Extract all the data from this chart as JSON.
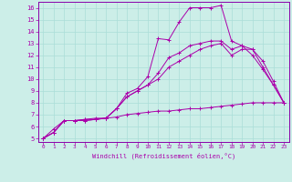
{
  "bg_color": "#cceee8",
  "grid_color": "#aaddd8",
  "line_color": "#aa00aa",
  "spine_color": "#8800aa",
  "xlabel": "Windchill (Refroidissement éolien,°C)",
  "xlim": [
    -0.5,
    23.5
  ],
  "ylim": [
    4.7,
    16.5
  ],
  "xticks": [
    0,
    1,
    2,
    3,
    4,
    5,
    6,
    7,
    8,
    9,
    10,
    11,
    12,
    13,
    14,
    15,
    16,
    17,
    18,
    19,
    20,
    21,
    22,
    23
  ],
  "yticks": [
    5,
    6,
    7,
    8,
    9,
    10,
    11,
    12,
    13,
    14,
    15,
    16
  ],
  "series": [
    {
      "x": [
        0,
        1,
        2,
        3,
        4,
        5,
        6,
        7,
        8,
        9,
        10,
        11,
        12,
        13,
        14,
        15,
        16,
        17,
        18,
        19,
        20,
        21,
        22,
        23
      ],
      "y": [
        5.0,
        5.8,
        6.5,
        6.5,
        6.6,
        6.7,
        6.7,
        7.5,
        8.8,
        9.2,
        10.2,
        13.4,
        13.3,
        14.8,
        16.0,
        16.0,
        16.0,
        16.2,
        13.2,
        12.8,
        12.0,
        10.8,
        9.5,
        8.0
      ]
    },
    {
      "x": [
        0,
        1,
        2,
        3,
        4,
        5,
        6,
        7,
        8,
        9,
        10,
        11,
        12,
        13,
        14,
        15,
        16,
        17,
        18,
        19,
        20,
        21,
        22,
        23
      ],
      "y": [
        5.0,
        5.5,
        6.5,
        6.5,
        6.6,
        6.6,
        6.7,
        7.5,
        8.5,
        9.0,
        9.5,
        10.5,
        11.8,
        12.2,
        12.8,
        13.0,
        13.2,
        13.2,
        12.5,
        12.8,
        12.5,
        11.0,
        9.5,
        8.0
      ]
    },
    {
      "x": [
        0,
        1,
        2,
        3,
        4,
        5,
        6,
        7,
        8,
        9,
        10,
        11,
        12,
        13,
        14,
        15,
        16,
        17,
        18,
        19,
        20,
        21,
        22,
        23
      ],
      "y": [
        5.0,
        5.5,
        6.5,
        6.5,
        6.5,
        6.6,
        6.7,
        7.5,
        8.5,
        9.0,
        9.5,
        10.0,
        11.0,
        11.5,
        12.0,
        12.5,
        12.8,
        13.0,
        12.0,
        12.5,
        12.5,
        11.5,
        9.8,
        8.0
      ]
    },
    {
      "x": [
        0,
        1,
        2,
        3,
        4,
        5,
        6,
        7,
        8,
        9,
        10,
        11,
        12,
        13,
        14,
        15,
        16,
        17,
        18,
        19,
        20,
        21,
        22,
        23
      ],
      "y": [
        5.0,
        5.5,
        6.5,
        6.5,
        6.5,
        6.6,
        6.7,
        6.8,
        7.0,
        7.1,
        7.2,
        7.3,
        7.3,
        7.4,
        7.5,
        7.5,
        7.6,
        7.7,
        7.8,
        7.9,
        8.0,
        8.0,
        8.0,
        8.0
      ]
    }
  ]
}
